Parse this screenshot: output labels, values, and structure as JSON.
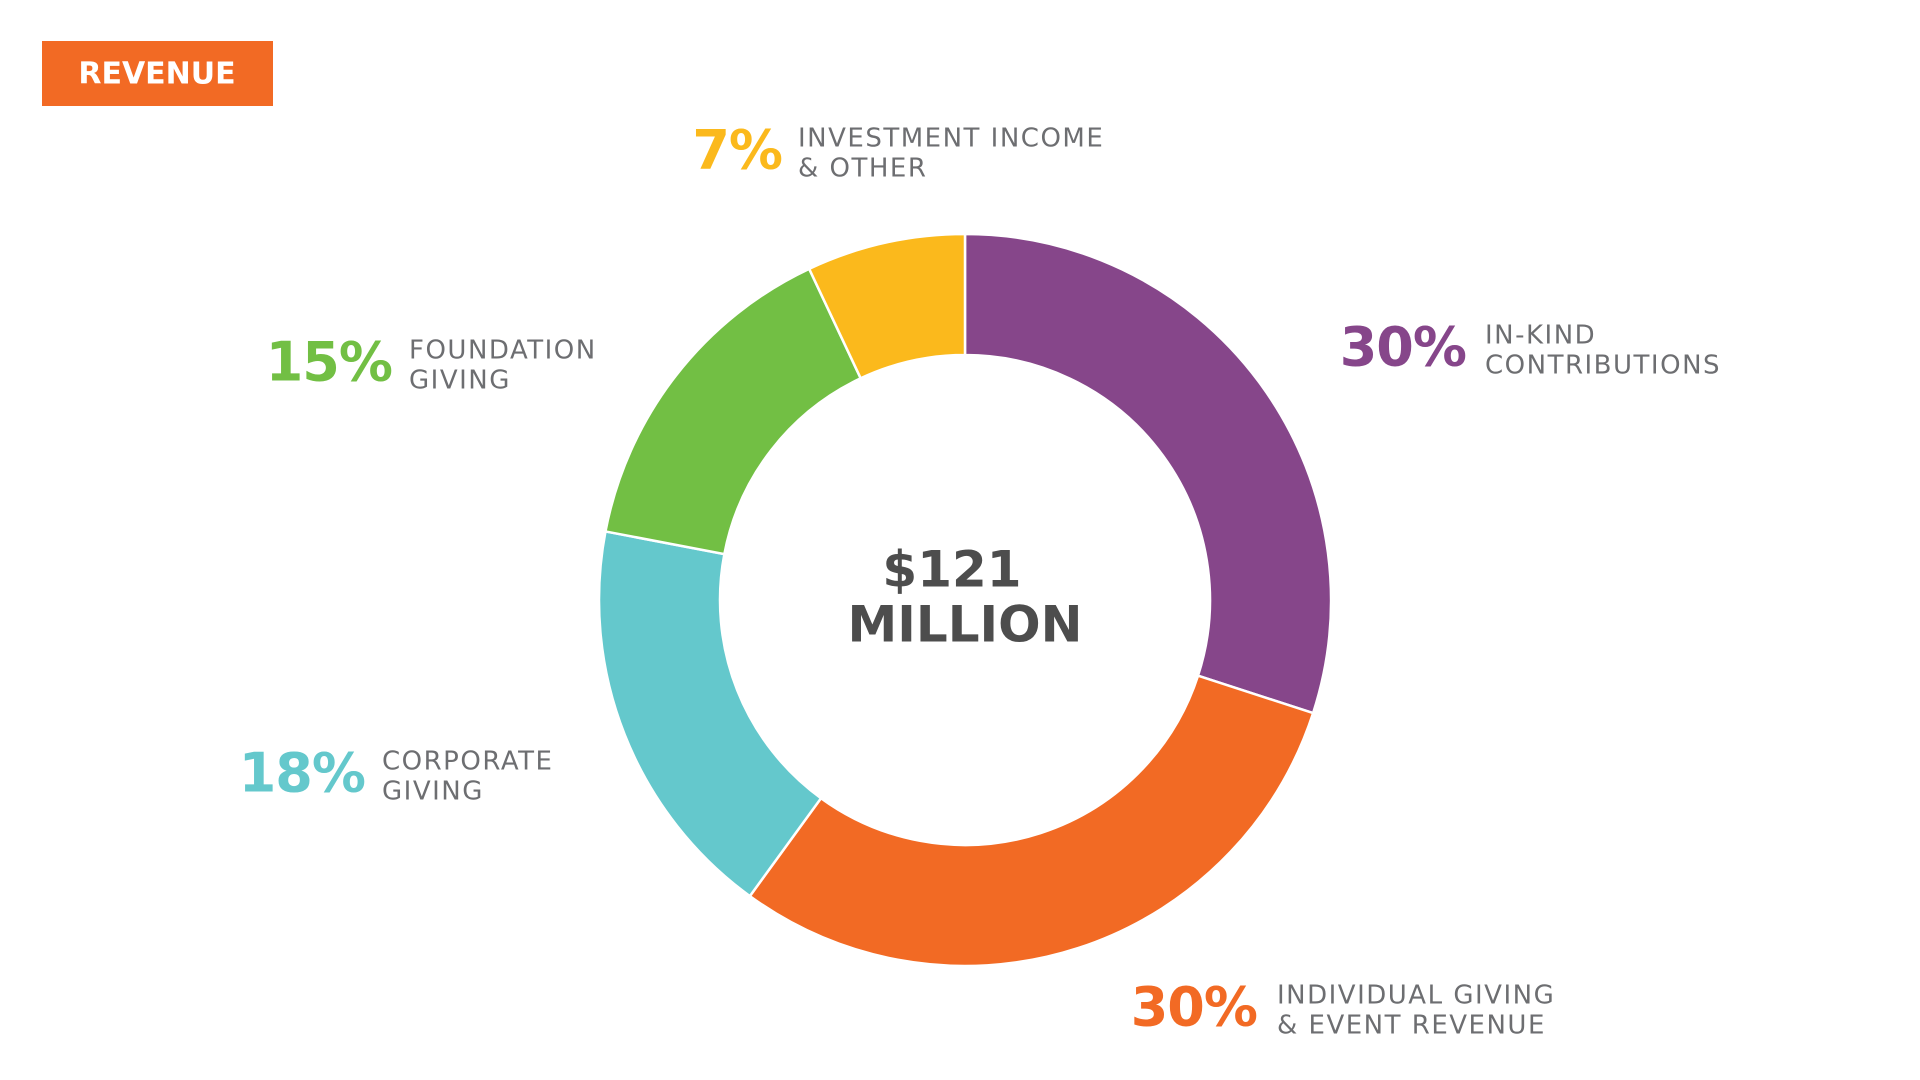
{
  "chart_data": {
    "type": "pie",
    "title": "REVENUE",
    "center_text": [
      "$121",
      "MILLION"
    ],
    "categories": [
      [
        "IN-KIND",
        "CONTRIBUTIONS"
      ],
      [
        "INDIVIDUAL GIVING",
        "& EVENT REVENUE"
      ],
      [
        "CORPORATE",
        "GIVING"
      ],
      [
        "FOUNDATION",
        "GIVING"
      ],
      [
        "INVESTMENT INCOME",
        "& OTHER"
      ]
    ],
    "values": [
      30,
      30,
      18,
      15,
      7
    ],
    "value_labels": [
      "30%",
      "30%",
      "18%",
      "15%",
      "7%"
    ],
    "colors": [
      "#86468a",
      "#f26a24",
      "#64c8cc",
      "#72bf44",
      "#fbb91c"
    ]
  }
}
